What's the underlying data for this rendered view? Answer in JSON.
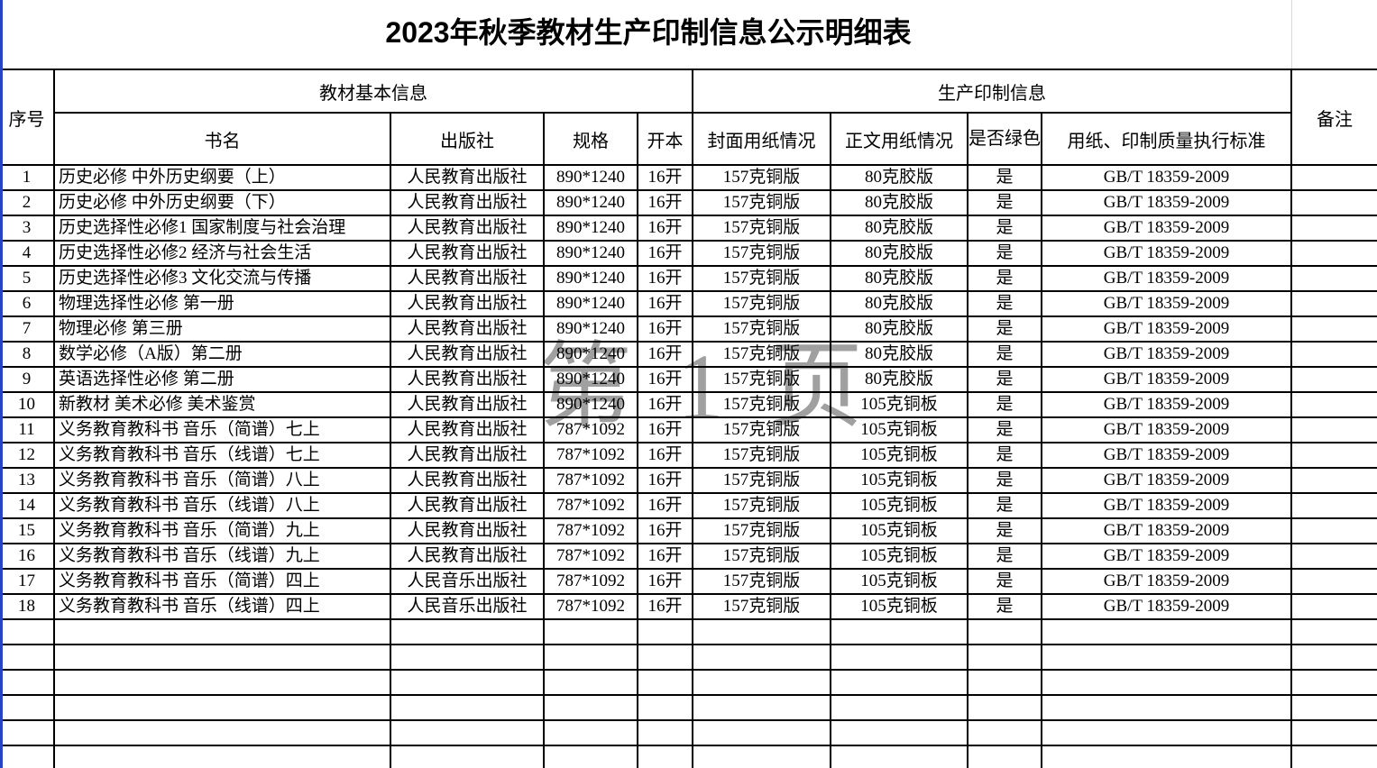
{
  "page": {
    "title": "2023年秋季教材生产印制信息公示明细表"
  },
  "watermark": {
    "text": "第1页"
  },
  "colors": {
    "accent_blue": "#2444c4",
    "border_black": "#000000",
    "watermark_gray": "#a0a0a0"
  },
  "table": {
    "group_headers": {
      "basic_info": "教材基本信息",
      "production_info": "生产印制信息"
    },
    "columns": {
      "no": "序号",
      "book_title": "书名",
      "publisher": "出版社",
      "spec": "规格",
      "format": "开本",
      "cover_paper": "封面用纸情况",
      "body_paper": "正文用纸情况",
      "green_print": "是否绿色印刷",
      "standard": "用纸、印制质量执行标准",
      "remark": "备注"
    },
    "empty_row_count": 6,
    "rows": [
      {
        "no": "1",
        "book_title": "历史必修 中外历史纲要（上）",
        "publisher": "人民教育出版社",
        "spec": "890*1240",
        "format": "16开",
        "cover_paper": "157克铜版",
        "body_paper": "80克胶版",
        "green_print": "是",
        "standard": "GB/T 18359-2009",
        "remark": ""
      },
      {
        "no": "2",
        "book_title": "历史必修 中外历史纲要（下）",
        "publisher": "人民教育出版社",
        "spec": "890*1240",
        "format": "16开",
        "cover_paper": "157克铜版",
        "body_paper": "80克胶版",
        "green_print": "是",
        "standard": "GB/T 18359-2009",
        "remark": ""
      },
      {
        "no": "3",
        "book_title": "历史选择性必修1 国家制度与社会治理",
        "publisher": "人民教育出版社",
        "spec": "890*1240",
        "format": "16开",
        "cover_paper": "157克铜版",
        "body_paper": "80克胶版",
        "green_print": "是",
        "standard": "GB/T 18359-2009",
        "remark": ""
      },
      {
        "no": "4",
        "book_title": "历史选择性必修2 经济与社会生活",
        "publisher": "人民教育出版社",
        "spec": "890*1240",
        "format": "16开",
        "cover_paper": "157克铜版",
        "body_paper": "80克胶版",
        "green_print": "是",
        "standard": "GB/T 18359-2009",
        "remark": ""
      },
      {
        "no": "5",
        "book_title": "历史选择性必修3 文化交流与传播",
        "publisher": "人民教育出版社",
        "spec": "890*1240",
        "format": "16开",
        "cover_paper": "157克铜版",
        "body_paper": "80克胶版",
        "green_print": "是",
        "standard": "GB/T 18359-2009",
        "remark": ""
      },
      {
        "no": "6",
        "book_title": "物理选择性必修 第一册",
        "publisher": "人民教育出版社",
        "spec": "890*1240",
        "format": "16开",
        "cover_paper": "157克铜版",
        "body_paper": "80克胶版",
        "green_print": "是",
        "standard": "GB/T 18359-2009",
        "remark": ""
      },
      {
        "no": "7",
        "book_title": "物理必修 第三册",
        "publisher": "人民教育出版社",
        "spec": "890*1240",
        "format": "16开",
        "cover_paper": "157克铜版",
        "body_paper": "80克胶版",
        "green_print": "是",
        "standard": "GB/T 18359-2009",
        "remark": ""
      },
      {
        "no": "8",
        "book_title": "数学必修（A版）第二册",
        "publisher": "人民教育出版社",
        "spec": "890*1240",
        "format": "16开",
        "cover_paper": "157克铜版",
        "body_paper": "80克胶版",
        "green_print": "是",
        "standard": "GB/T 18359-2009",
        "remark": ""
      },
      {
        "no": "9",
        "book_title": "英语选择性必修 第二册",
        "publisher": "人民教育出版社",
        "spec": "890*1240",
        "format": "16开",
        "cover_paper": "157克铜版",
        "body_paper": "80克胶版",
        "green_print": "是",
        "standard": "GB/T 18359-2009",
        "remark": ""
      },
      {
        "no": "10",
        "book_title": "新教材 美术必修 美术鉴赏",
        "publisher": "人民教育出版社",
        "spec": "890*1240",
        "format": "16开",
        "cover_paper": "157克铜版",
        "body_paper": "105克铜板",
        "green_print": "是",
        "standard": "GB/T 18359-2009",
        "remark": ""
      },
      {
        "no": "11",
        "book_title": "义务教育教科书 音乐（简谱）七上",
        "publisher": "人民教育出版社",
        "spec": "787*1092",
        "format": "16开",
        "cover_paper": "157克铜版",
        "body_paper": "105克铜板",
        "green_print": "是",
        "standard": "GB/T 18359-2009",
        "remark": ""
      },
      {
        "no": "12",
        "book_title": "义务教育教科书 音乐（线谱）七上",
        "publisher": "人民教育出版社",
        "spec": "787*1092",
        "format": "16开",
        "cover_paper": "157克铜版",
        "body_paper": "105克铜板",
        "green_print": "是",
        "standard": "GB/T 18359-2009",
        "remark": ""
      },
      {
        "no": "13",
        "book_title": "义务教育教科书 音乐（简谱）八上",
        "publisher": "人民教育出版社",
        "spec": "787*1092",
        "format": "16开",
        "cover_paper": "157克铜版",
        "body_paper": "105克铜板",
        "green_print": "是",
        "standard": "GB/T 18359-2009",
        "remark": ""
      },
      {
        "no": "14",
        "book_title": "义务教育教科书 音乐（线谱）八上",
        "publisher": "人民教育出版社",
        "spec": "787*1092",
        "format": "16开",
        "cover_paper": "157克铜版",
        "body_paper": "105克铜板",
        "green_print": "是",
        "standard": "GB/T 18359-2009",
        "remark": ""
      },
      {
        "no": "15",
        "book_title": "义务教育教科书 音乐（简谱）九上",
        "publisher": "人民教育出版社",
        "spec": "787*1092",
        "format": "16开",
        "cover_paper": "157克铜版",
        "body_paper": "105克铜板",
        "green_print": "是",
        "standard": "GB/T 18359-2009",
        "remark": ""
      },
      {
        "no": "16",
        "book_title": "义务教育教科书 音乐（线谱）九上",
        "publisher": "人民教育出版社",
        "spec": "787*1092",
        "format": "16开",
        "cover_paper": "157克铜版",
        "body_paper": "105克铜板",
        "green_print": "是",
        "standard": "GB/T 18359-2009",
        "remark": ""
      },
      {
        "no": "17",
        "book_title": "义务教育教科书 音乐（简谱）四上",
        "publisher": "人民音乐出版社",
        "spec": "787*1092",
        "format": "16开",
        "cover_paper": "157克铜版",
        "body_paper": "105克铜板",
        "green_print": "是",
        "standard": "GB/T 18359-2009",
        "remark": ""
      },
      {
        "no": "18",
        "book_title": "义务教育教科书 音乐（线谱）四上",
        "publisher": "人民音乐出版社",
        "spec": "787*1092",
        "format": "16开",
        "cover_paper": "157克铜版",
        "body_paper": "105克铜板",
        "green_print": "是",
        "standard": "GB/T 18359-2009",
        "remark": ""
      }
    ]
  }
}
